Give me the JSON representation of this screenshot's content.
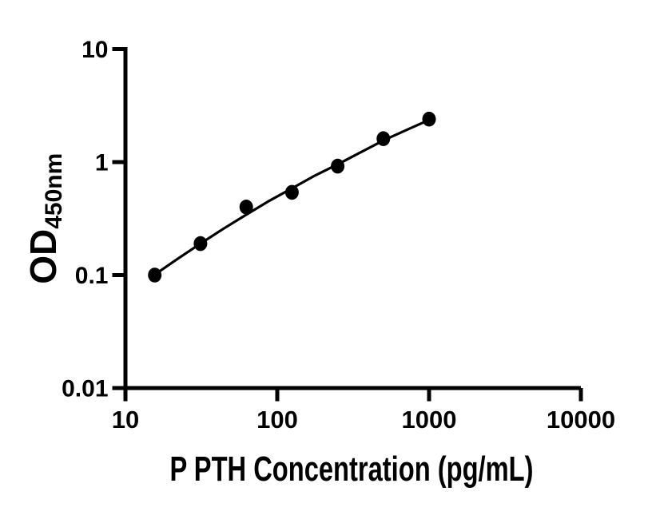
{
  "figure": {
    "background": "#ffffff",
    "foreground": "#000000"
  },
  "chart_data": {
    "type": "scatter",
    "title": "",
    "xlabel": "P PTH Concentration (pg/mL)",
    "ylabel": "OD",
    "ylabel_subscript": "450nm",
    "x_scale": "log10",
    "y_scale": "log10",
    "xlim": [
      10,
      10000
    ],
    "ylim": [
      0.01,
      10
    ],
    "x_ticks": [
      10,
      100,
      1000,
      10000
    ],
    "x_tick_labels": [
      "10",
      "100",
      "1000",
      "10000"
    ],
    "y_ticks": [
      10,
      1,
      0.1,
      0.01
    ],
    "y_tick_labels": [
      "10",
      "1",
      "0.1",
      "0.01"
    ],
    "grid": false,
    "legend": "none",
    "marker_color": "#000000",
    "line_color": "#000000",
    "series": [
      {
        "name": "standard_curve",
        "marker": "filled-circle",
        "points": [
          {
            "x": 15.6,
            "y": 0.1
          },
          {
            "x": 31.2,
            "y": 0.19
          },
          {
            "x": 62.5,
            "y": 0.4
          },
          {
            "x": 125,
            "y": 0.54
          },
          {
            "x": 250,
            "y": 0.92
          },
          {
            "x": 500,
            "y": 1.61
          },
          {
            "x": 1000,
            "y": 2.4
          }
        ]
      }
    ],
    "fit_line": {
      "name": "fit_curve",
      "samples": [
        [
          15.6,
          0.101
        ],
        [
          22,
          0.139
        ],
        [
          31.2,
          0.19
        ],
        [
          44,
          0.256
        ],
        [
          62.5,
          0.342
        ],
        [
          88,
          0.452
        ],
        [
          125,
          0.585
        ],
        [
          177,
          0.76
        ],
        [
          250,
          0.955
        ],
        [
          354,
          1.22
        ],
        [
          500,
          1.555
        ],
        [
          707,
          1.92
        ],
        [
          1000,
          2.36
        ]
      ]
    }
  }
}
